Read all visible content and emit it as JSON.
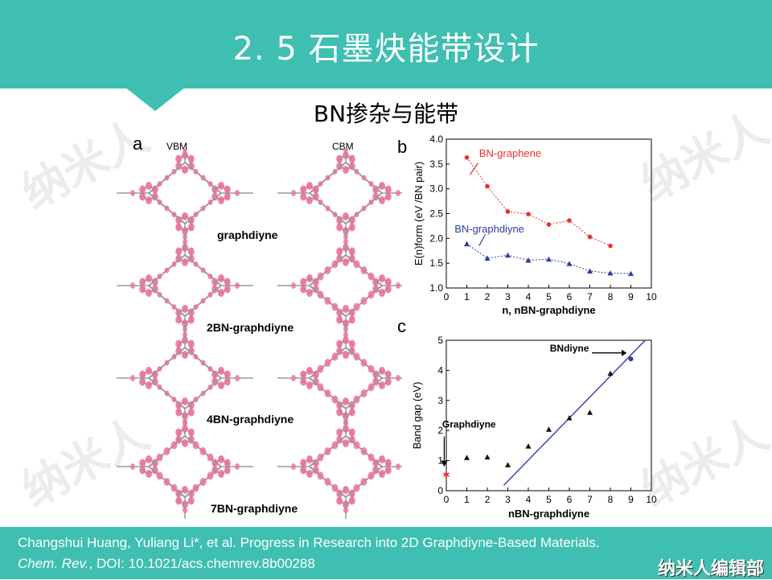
{
  "header": {
    "title": "2. 5  石墨炔能带设计"
  },
  "subtitle": "BN掺杂与能带",
  "watermark": "纳米人",
  "figure": {
    "panel_a": {
      "label": "a",
      "col_vbm": "VBM",
      "col_cbm": "CBM",
      "molecules": [
        "graphdiyne",
        "2BN-graphdiyne",
        "4BN-graphdiyne",
        "7BN-graphdiyne"
      ]
    },
    "panel_b_label": "b",
    "panel_c_label": "c"
  },
  "chart_data": [
    {
      "type": "line",
      "xlabel": "n, nBN-graphdiyne",
      "ylabel": "E(n)form (eV /BN pair)",
      "xlim": [
        0,
        10
      ],
      "ylim": [
        1.0,
        4.0
      ],
      "xticks": [
        0,
        1,
        2,
        3,
        4,
        5,
        6,
        7,
        8,
        9,
        10
      ],
      "yticks": [
        1.0,
        1.5,
        2.0,
        2.5,
        3.0,
        3.5,
        4.0
      ],
      "series": [
        {
          "name": "BN-graphene",
          "color": "#e8302a",
          "marker": "circle",
          "x": [
            1,
            2,
            3,
            4,
            5,
            6,
            7,
            8
          ],
          "y": [
            3.63,
            3.05,
            2.54,
            2.49,
            2.28,
            2.36,
            2.03,
            1.85
          ]
        },
        {
          "name": "BN-graphdiyne",
          "color": "#2c3e9f",
          "marker": "triangle",
          "x": [
            1,
            2,
            3,
            4,
            5,
            6,
            7,
            8,
            9
          ],
          "y": [
            1.89,
            1.6,
            1.66,
            1.56,
            1.58,
            1.49,
            1.34,
            1.3,
            1.29
          ]
        }
      ]
    },
    {
      "type": "scatter",
      "xlabel": "nBN-graphdiyne",
      "ylabel": "Band gap (eV)",
      "xlim": [
        0,
        10
      ],
      "ylim": [
        0,
        5
      ],
      "xticks": [
        0,
        1,
        2,
        3,
        4,
        5,
        6,
        7,
        8,
        9,
        10
      ],
      "yticks": [
        0,
        1,
        2,
        3,
        4,
        5
      ],
      "annotations": [
        "Graphdiyne",
        "BNdiyne"
      ],
      "series": [
        {
          "name": "Graphdiyne",
          "color": "#e8302a",
          "marker": "star",
          "x": [
            0
          ],
          "y": [
            0.54
          ]
        },
        {
          "name": "nBN",
          "color": "#111111",
          "marker": "triangle",
          "x": [
            1,
            2,
            3,
            4,
            5,
            6,
            7,
            8
          ],
          "y": [
            1.1,
            1.12,
            0.86,
            1.48,
            2.04,
            2.42,
            2.6,
            3.9
          ]
        },
        {
          "name": "BNdiyne",
          "color": "#2c3e9f",
          "marker": "circle",
          "x": [
            9
          ],
          "y": [
            4.38
          ]
        }
      ],
      "fit_line": {
        "color": "#2c3e9f",
        "x": [
          2.8,
          9.7
        ],
        "y": [
          0.18,
          5.0
        ]
      }
    }
  ],
  "footer": {
    "ref_line1": "Changshui Huang, Yuliang Li*, et al. Progress in Research into 2D Graphdiyne-Based Materials.",
    "ref_journal": "Chem. Rev.",
    "ref_line2_rest": ", DOI: 10.1021/acs.chemrev.8b00288",
    "brand": "纳米人编辑部"
  }
}
